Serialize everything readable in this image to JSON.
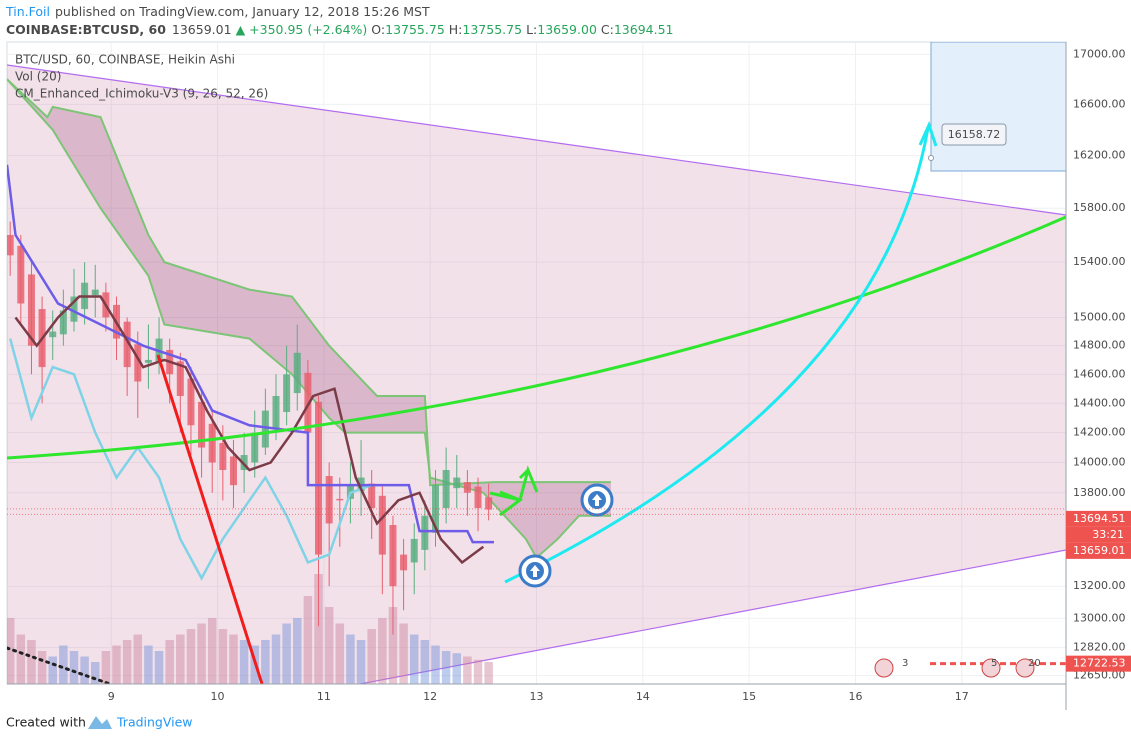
{
  "header": {
    "author": "Tin.Foil",
    "published": "published on TradingView.com, January 12, 2018 15:26 MST",
    "symbol": "COINBASE:BTCUSD, 60",
    "last": "13659.01",
    "change": "▲ +350.95 (+2.64%)",
    "ohlc": [
      {
        "label": "O:",
        "value": "13755.75"
      },
      {
        "label": "H:",
        "value": "13755.75"
      },
      {
        "label": "L:",
        "value": "13659.00"
      },
      {
        "label": "C:",
        "value": "13694.51"
      }
    ]
  },
  "footer": {
    "created": "Created with",
    "brand": "TradingView"
  },
  "chart_data": {
    "type": "candlestick",
    "title": "BTC/USD, 60, COINBASE, Heikin Ashi",
    "indicators": [
      "Vol (20)",
      "CM_Enhanced_Ichimoku-V3 (9, 26, 52, 26)"
    ],
    "log_scale": true,
    "grid": true,
    "xlim": [
      8.02,
      17.98
    ],
    "xticks": [
      9,
      10,
      11,
      12,
      13,
      14,
      15,
      16,
      17
    ],
    "ylim": [
      12600,
      17100
    ],
    "yticks": [
      {
        "value": 12650,
        "label": "12650.00"
      },
      {
        "value": 12820,
        "label": "12820.00"
      },
      {
        "value": 13000,
        "label": "13000.00"
      },
      {
        "value": 13200,
        "label": "13200.00"
      },
      {
        "value": 13800,
        "label": "13800.00"
      },
      {
        "value": 14000,
        "label": "14000.00"
      },
      {
        "value": 14200,
        "label": "14200.00"
      },
      {
        "value": 14400,
        "label": "14400.00"
      },
      {
        "value": 14600,
        "label": "14600.00"
      },
      {
        "value": 14800,
        "label": "14800.00"
      },
      {
        "value": 15000,
        "label": "15000.00"
      },
      {
        "value": 15400,
        "label": "15400.00"
      },
      {
        "value": 15800,
        "label": "15800.00"
      },
      {
        "value": 16200,
        "label": "16200.00"
      },
      {
        "value": 16600,
        "label": "16600.00"
      },
      {
        "value": 17000,
        "label": "17000.00"
      }
    ],
    "up_color": "#5bae82",
    "down_color": "#e8606f",
    "x": [
      8.05,
      8.15,
      8.25,
      8.35,
      8.45,
      8.55,
      8.65,
      8.75,
      8.85,
      8.95,
      9.05,
      9.15,
      9.25,
      9.35,
      9.45,
      9.55,
      9.65,
      9.75,
      9.85,
      9.95,
      10.05,
      10.15,
      10.25,
      10.35,
      10.45,
      10.55,
      10.65,
      10.75,
      10.85,
      10.95,
      11.05,
      11.15,
      11.25,
      11.35,
      11.45,
      11.55,
      11.65,
      11.75,
      11.85,
      11.95,
      12.05,
      12.15,
      12.25,
      12.35,
      12.45,
      12.55
    ],
    "open": [
      15600,
      15520,
      15310,
      15060,
      14860,
      14880,
      14970,
      15060,
      15160,
      15180,
      15090,
      14970,
      14810,
      14680,
      14690,
      14770,
      14690,
      14570,
      14410,
      14260,
      14130,
      14040,
      13950,
      14000,
      14100,
      14230,
      14340,
      14470,
      14610,
      14410,
      13910,
      13760,
      13760,
      13810,
      13860,
      13780,
      13590,
      13400,
      13350,
      13430,
      13540,
      13700,
      13830,
      13870,
      13840,
      13770
    ],
    "high": [
      15700,
      15600,
      15400,
      15150,
      15050,
      15200,
      15350,
      15400,
      15380,
      15250,
      15150,
      15000,
      14900,
      14950,
      15000,
      14850,
      14750,
      14650,
      14500,
      14350,
      14250,
      14150,
      14200,
      14350,
      14500,
      14600,
      14800,
      14950,
      14700,
      14450,
      14000,
      13900,
      14000,
      14150,
      13950,
      13850,
      13650,
      13500,
      13600,
      13750,
      13950,
      14100,
      14050,
      13950,
      13900,
      13860
    ],
    "low": [
      15300,
      14950,
      14600,
      14400,
      14700,
      14800,
      14900,
      14950,
      15000,
      14900,
      14700,
      14450,
      14300,
      14500,
      14600,
      14400,
      14200,
      14050,
      13900,
      13800,
      13750,
      13700,
      13800,
      13900,
      14050,
      14150,
      14250,
      14350,
      14000,
      12950,
      13200,
      13450,
      13600,
      13650,
      13500,
      13150,
      12900,
      13050,
      13150,
      13300,
      13450,
      13600,
      13700,
      13650,
      13550,
      13620
    ],
    "close": [
      15450,
      15100,
      14800,
      14650,
      14900,
      15050,
      15150,
      15250,
      15200,
      15000,
      14850,
      14650,
      14550,
      14700,
      14850,
      14600,
      14450,
      14250,
      14100,
      14000,
      13950,
      13850,
      14050,
      14200,
      14350,
      14450,
      14600,
      14750,
      14200,
      13400,
      13600,
      13750,
      13850,
      13900,
      13700,
      13400,
      13200,
      13300,
      13500,
      13650,
      13850,
      13950,
      13900,
      13800,
      13700,
      13690
    ],
    "volume": [
      60,
      45,
      40,
      30,
      25,
      35,
      30,
      25,
      20,
      30,
      35,
      40,
      45,
      35,
      30,
      40,
      45,
      50,
      55,
      60,
      50,
      45,
      40,
      35,
      40,
      45,
      55,
      60,
      80,
      100,
      70,
      55,
      45,
      40,
      50,
      60,
      70,
      55,
      45,
      40,
      35,
      30,
      28,
      25,
      22,
      20
    ],
    "ichimoku": {
      "kijun": {
        "color": "#6c5ce7",
        "x": [
          8.02,
          8.1,
          8.5,
          8.9,
          9.3,
          9.7,
          9.95,
          10.3,
          10.85,
          10.85,
          11.8,
          11.9,
          12.35,
          12.4,
          12.6
        ],
        "values": [
          16130,
          15600,
          15100,
          14950,
          14800,
          14700,
          14350,
          14250,
          14200,
          13850,
          13850,
          13550,
          13550,
          13480,
          13480
        ]
      },
      "tenkan": {
        "color": "#7b3b47",
        "x": [
          8.1,
          8.3,
          8.5,
          8.7,
          8.9,
          9.1,
          9.3,
          9.5,
          9.7,
          9.9,
          10.1,
          10.3,
          10.5,
          10.7,
          10.9,
          11.1,
          11.3,
          11.5,
          11.7,
          11.9,
          12.1,
          12.3,
          12.5
        ],
        "values": [
          15000,
          14800,
          15000,
          15150,
          15150,
          14900,
          14650,
          14700,
          14650,
          14350,
          14100,
          13950,
          14000,
          14200,
          14450,
          14500,
          13900,
          13600,
          13750,
          13800,
          13500,
          13350,
          13450
        ]
      },
      "chikou": {
        "color": "#7fd3e6",
        "x": [
          8.05,
          8.25,
          8.45,
          8.65,
          8.85,
          9.05,
          9.25,
          9.45,
          9.65,
          9.85,
          10.05,
          10.25,
          10.45,
          10.65,
          10.85,
          11.05,
          11.25,
          11.45
        ],
        "values": [
          14850,
          14300,
          14650,
          14600,
          14200,
          13900,
          14100,
          13900,
          13500,
          13250,
          13500,
          13700,
          13900,
          13650,
          13350,
          13400,
          13800,
          13850
        ]
      },
      "span_a": {
        "color": "#7cc576",
        "x": [
          8.02,
          8.4,
          8.45,
          8.9,
          9.35,
          9.5,
          10.3,
          10.7,
          11.05,
          11.5,
          11.95,
          12.0,
          12.6,
          13.7
        ],
        "values": [
          16800,
          16500,
          16580,
          16500,
          15600,
          15400,
          15200,
          15150,
          14800,
          14450,
          14450,
          13850,
          13870,
          13870
        ]
      },
      "span_b": {
        "color": "#7cc576",
        "x": [
          8.02,
          8.45,
          8.9,
          9.35,
          9.5,
          10.3,
          10.7,
          11.05,
          11.2,
          11.95,
          12.0,
          12.5,
          12.9,
          13.0,
          13.2,
          13.4,
          13.7
        ],
        "values": [
          16800,
          16400,
          15800,
          15300,
          14950,
          14850,
          14600,
          14300,
          14200,
          14200,
          13900,
          13800,
          13500,
          13380,
          13500,
          13650,
          13650
        ]
      },
      "cloud_color": "#9c4a7a"
    },
    "price_labels": [
      {
        "value": 13694.51,
        "color": "#ef5350"
      },
      {
        "value": 13659.01,
        "color": "#ef5350"
      },
      {
        "value": 12722.53,
        "color": "#ef5350"
      }
    ],
    "countdown": "33:21",
    "drawing_label": "16158.72",
    "events": [
      "3",
      "5",
      "20"
    ]
  }
}
